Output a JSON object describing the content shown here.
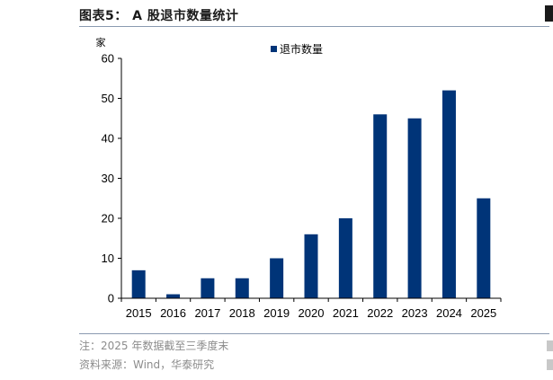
{
  "header": {
    "title": "图表5： A 股退市数量统计"
  },
  "footer": {
    "note": "注：2025 年数据截至三季度末",
    "source": "资料来源：Wind，华泰研究"
  },
  "colors": {
    "bar": "#003478",
    "axis": "#000000",
    "rule": "#8a9ab0"
  },
  "chart_data": {
    "type": "bar",
    "categories": [
      "2015",
      "2016",
      "2017",
      "2018",
      "2019",
      "2020",
      "2021",
      "2022",
      "2023",
      "2024",
      "2025"
    ],
    "series": [
      {
        "name": "退市数量",
        "values": [
          7,
          1,
          5,
          5,
          10,
          16,
          20,
          46,
          45,
          52,
          25
        ]
      }
    ],
    "title": "",
    "xlabel": "",
    "ylabel": "家",
    "ylim": [
      0,
      60
    ],
    "yticks": [
      0,
      10,
      20,
      30,
      40,
      50,
      60
    ],
    "grid": false,
    "legend": "top-center"
  }
}
